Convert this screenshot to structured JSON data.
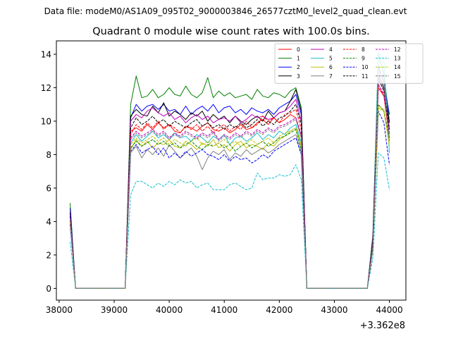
{
  "header": {
    "data_file": "Data file: modeM0/AS1A09_095T02_9000003846_26577cztM0_level2_quad_clean.evt"
  },
  "chart_data": {
    "type": "line",
    "title": "Quadrant 0 module wise count rates with 100.0s bins.",
    "xlabel": "",
    "ylabel": "",
    "x_offset_label": "+3.362e8",
    "xlim": [
      37950,
      44300
    ],
    "ylim": [
      -0.7,
      14.8
    ],
    "x_ticks": [
      38000,
      39000,
      40000,
      41000,
      42000,
      43000,
      44000
    ],
    "y_ticks": [
      0,
      2,
      4,
      6,
      8,
      10,
      12,
      14
    ],
    "grid": false,
    "legend": {
      "placement": "top-right",
      "columns": 4
    },
    "x": [
      38200,
      38300,
      38400,
      38500,
      38600,
      38700,
      38800,
      38900,
      39000,
      39100,
      39200,
      39300,
      39400,
      39500,
      39600,
      39700,
      39800,
      39900,
      40000,
      40100,
      40200,
      40300,
      40400,
      40500,
      40600,
      40700,
      40800,
      40900,
      41000,
      41100,
      41200,
      41300,
      41400,
      41500,
      41600,
      41700,
      41800,
      41900,
      42000,
      42100,
      42200,
      42300,
      42400,
      42500,
      42600,
      42700,
      42800,
      42900,
      43000,
      43100,
      43200,
      43300,
      43400,
      43500,
      43600,
      43700,
      43800,
      43900,
      44000
    ],
    "series": [
      {
        "name": "0",
        "color": "#ff0000",
        "dash": "solid",
        "values": [
          4.6,
          0,
          0,
          0,
          0,
          0,
          0,
          0,
          0,
          0,
          0,
          9.4,
          9.6,
          9.4,
          9.8,
          9.5,
          9.9,
          9.6,
          9.8,
          9.4,
          9.3,
          9.7,
          9.6,
          9.4,
          9.7,
          9.9,
          9.5,
          9.4,
          9.6,
          9.3,
          9.5,
          9.8,
          9.5,
          9.6,
          9.9,
          10.1,
          9.8,
          10.2,
          9.9,
          10.1,
          10.4,
          10.2,
          9.0,
          0,
          0,
          0,
          0,
          0,
          0,
          0,
          0,
          0,
          0,
          0,
          0,
          2.5,
          12.0,
          11.5,
          9.0
        ]
      },
      {
        "name": "1",
        "color": "#008000",
        "dash": "solid",
        "values": [
          5.1,
          0,
          0,
          0,
          0,
          0,
          0,
          0,
          0,
          0,
          0,
          11.0,
          12.7,
          11.4,
          11.5,
          11.9,
          11.4,
          11.6,
          12.0,
          11.6,
          11.5,
          12.1,
          11.6,
          11.4,
          11.7,
          12.6,
          11.4,
          11.8,
          11.5,
          11.7,
          11.4,
          11.5,
          11.6,
          11.3,
          11.9,
          11.5,
          11.4,
          11.7,
          11.6,
          11.4,
          11.8,
          12.0,
          10.8,
          0,
          0,
          0,
          0,
          0,
          0,
          0,
          0,
          0,
          0,
          0,
          0,
          3.2,
          14.0,
          12.8,
          10.0
        ]
      },
      {
        "name": "2",
        "color": "#0000ff",
        "dash": "solid",
        "values": [
          4.8,
          0,
          0,
          0,
          0,
          0,
          0,
          0,
          0,
          0,
          0,
          10.2,
          11.0,
          10.6,
          10.9,
          11.0,
          10.7,
          11.0,
          10.6,
          10.7,
          10.4,
          10.9,
          10.4,
          10.7,
          10.9,
          10.6,
          11.0,
          10.5,
          10.8,
          10.9,
          10.5,
          10.7,
          10.4,
          10.8,
          10.6,
          10.5,
          10.7,
          10.4,
          10.8,
          11.0,
          11.2,
          11.6,
          10.4,
          0,
          0,
          0,
          0,
          0,
          0,
          0,
          0,
          0,
          0,
          0,
          0,
          3.0,
          13.3,
          12.3,
          10.4
        ]
      },
      {
        "name": "3",
        "color": "#000000",
        "dash": "solid",
        "values": [
          4.5,
          0,
          0,
          0,
          0,
          0,
          0,
          0,
          0,
          0,
          0,
          10.3,
          10.7,
          10.4,
          10.3,
          10.9,
          10.5,
          11.1,
          10.3,
          10.6,
          10.4,
          10.1,
          10.5,
          10.3,
          10.6,
          10.0,
          10.4,
          10.1,
          10.3,
          9.9,
          10.3,
          10.0,
          9.8,
          10.1,
          10.3,
          10.0,
          10.6,
          10.2,
          10.5,
          10.6,
          11.2,
          11.9,
          10.6,
          0,
          0,
          0,
          0,
          0,
          0,
          0,
          0,
          0,
          0,
          0,
          0,
          2.9,
          12.8,
          12.0,
          9.9
        ]
      },
      {
        "name": "4",
        "color": "#bf00bf",
        "dash": "solid",
        "values": [
          4.4,
          0,
          0,
          0,
          0,
          0,
          0,
          0,
          0,
          0,
          0,
          10.0,
          10.4,
          10.2,
          10.6,
          10.8,
          10.5,
          10.3,
          10.5,
          10.1,
          10.3,
          9.9,
          10.2,
          10.4,
          10.1,
          10.3,
          9.9,
          10.1,
          10.2,
          10.0,
          10.3,
          9.9,
          10.1,
          10.4,
          10.2,
          10.3,
          10.1,
          10.2,
          10.5,
          10.6,
          10.9,
          11.3,
          10.0,
          0,
          0,
          0,
          0,
          0,
          0,
          0,
          0,
          0,
          0,
          0,
          0,
          2.8,
          12.6,
          11.8,
          9.6
        ]
      },
      {
        "name": "5",
        "color": "#17becf",
        "dash": "solid",
        "values": [
          4.0,
          0,
          0,
          0,
          0,
          0,
          0,
          0,
          0,
          0,
          0,
          8.7,
          9.2,
          8.8,
          9.1,
          9.4,
          9.0,
          9.2,
          8.9,
          9.3,
          9.0,
          9.1,
          8.8,
          9.2,
          9.0,
          8.7,
          9.1,
          8.9,
          9.2,
          8.6,
          9.0,
          9.1,
          8.8,
          9.0,
          9.3,
          8.9,
          9.2,
          9.0,
          9.4,
          9.2,
          9.6,
          9.8,
          8.7,
          0,
          0,
          0,
          0,
          0,
          0,
          0,
          0,
          0,
          0,
          0,
          0,
          2.4,
          14.1,
          13.6,
          8.1
        ]
      },
      {
        "name": "6",
        "color": "#bfbf00",
        "dash": "solid",
        "values": [
          4.1,
          0,
          0,
          0,
          0,
          0,
          0,
          0,
          0,
          0,
          0,
          8.3,
          8.9,
          8.5,
          8.8,
          8.4,
          8.7,
          8.6,
          8.9,
          8.5,
          8.4,
          8.8,
          8.6,
          8.3,
          8.7,
          8.5,
          8.9,
          8.4,
          8.6,
          8.2,
          8.6,
          8.8,
          8.4,
          8.6,
          8.5,
          8.3,
          8.7,
          8.5,
          8.9,
          9.1,
          9.4,
          9.6,
          8.4,
          0,
          0,
          0,
          0,
          0,
          0,
          0,
          0,
          0,
          0,
          0,
          0,
          2.3,
          10.8,
          10.6,
          8.5
        ]
      },
      {
        "name": "7",
        "color": "#808080",
        "dash": "solid",
        "values": [
          3.9,
          0,
          0,
          0,
          0,
          0,
          0,
          0,
          0,
          0,
          0,
          8.1,
          8.5,
          7.8,
          8.3,
          8.0,
          8.4,
          7.9,
          8.6,
          8.2,
          7.8,
          8.1,
          8.4,
          7.9,
          7.1,
          7.8,
          8.2,
          8.0,
          8.3,
          7.7,
          8.1,
          7.9,
          8.3,
          8.0,
          8.2,
          8.4,
          8.1,
          8.3,
          8.6,
          8.8,
          9.0,
          9.2,
          8.1,
          0,
          0,
          0,
          0,
          0,
          0,
          0,
          0,
          0,
          0,
          0,
          0,
          2.6,
          13.0,
          12.6,
          8.8
        ]
      },
      {
        "name": "8",
        "color": "#ff0000",
        "dash": "dashed",
        "values": [
          4.2,
          0,
          0,
          0,
          0,
          0,
          0,
          0,
          0,
          0,
          0,
          9.2,
          9.8,
          9.5,
          9.9,
          9.6,
          10.0,
          9.5,
          9.8,
          9.6,
          9.3,
          9.7,
          9.5,
          9.8,
          9.4,
          9.7,
          9.3,
          9.6,
          9.8,
          9.4,
          9.7,
          9.5,
          10.0,
          9.6,
          9.8,
          10.3,
          10.0,
          10.2,
          9.9,
          10.4,
          10.5,
          10.7,
          9.5,
          0,
          0,
          0,
          0,
          0,
          0,
          0,
          0,
          0,
          0,
          0,
          0,
          2.7,
          12.2,
          11.5,
          9.3
        ]
      },
      {
        "name": "9",
        "color": "#008000",
        "dash": "dashed",
        "values": [
          4.0,
          0,
          0,
          0,
          0,
          0,
          0,
          0,
          0,
          0,
          0,
          8.4,
          8.8,
          8.5,
          8.7,
          8.9,
          8.6,
          8.8,
          8.5,
          8.7,
          8.4,
          8.6,
          8.8,
          8.5,
          8.3,
          8.6,
          8.5,
          8.7,
          8.4,
          8.6,
          8.2,
          8.5,
          8.7,
          8.4,
          8.6,
          8.8,
          8.5,
          8.7,
          9.0,
          9.1,
          9.3,
          9.5,
          8.3,
          0,
          0,
          0,
          0,
          0,
          0,
          0,
          0,
          0,
          0,
          0,
          0,
          2.5,
          11.0,
          10.6,
          9.0
        ]
      },
      {
        "name": "10",
        "color": "#0000ff",
        "dash": "dashed",
        "values": [
          3.8,
          0,
          0,
          0,
          0,
          0,
          0,
          0,
          0,
          0,
          0,
          8.2,
          8.6,
          8.1,
          8.3,
          8.5,
          8.0,
          8.4,
          7.8,
          8.1,
          7.8,
          8.2,
          7.9,
          8.1,
          8.3,
          8.0,
          7.9,
          7.7,
          8.0,
          7.6,
          7.9,
          7.7,
          7.8,
          7.5,
          7.7,
          8.0,
          7.8,
          8.2,
          8.4,
          8.6,
          8.8,
          9.0,
          8.0,
          0,
          0,
          0,
          0,
          0,
          0,
          0,
          0,
          0,
          0,
          0,
          0,
          2.4,
          10.6,
          9.9,
          7.4
        ]
      },
      {
        "name": "11",
        "color": "#000000",
        "dash": "dashed",
        "values": [
          4.3,
          0,
          0,
          0,
          0,
          0,
          0,
          0,
          0,
          0,
          0,
          9.6,
          10.2,
          9.8,
          10.0,
          10.3,
          9.9,
          10.1,
          9.7,
          10.0,
          9.8,
          9.6,
          9.9,
          10.1,
          9.7,
          9.9,
          9.6,
          9.8,
          9.5,
          9.8,
          9.6,
          9.9,
          9.6,
          9.8,
          10.1,
          9.7,
          10.0,
          9.8,
          10.2,
          10.3,
          10.6,
          11.0,
          9.8,
          0,
          0,
          0,
          0,
          0,
          0,
          0,
          0,
          0,
          0,
          0,
          0,
          2.8,
          12.5,
          11.8,
          9.5
        ]
      },
      {
        "name": "12",
        "color": "#bf00bf",
        "dash": "dashed",
        "values": [
          4.1,
          0,
          0,
          0,
          0,
          0,
          0,
          0,
          0,
          0,
          0,
          9.0,
          9.4,
          9.1,
          9.3,
          9.5,
          9.2,
          9.4,
          9.0,
          9.3,
          9.1,
          9.4,
          9.2,
          9.0,
          9.3,
          9.1,
          9.4,
          8.9,
          9.2,
          9.0,
          9.3,
          9.1,
          9.4,
          9.2,
          9.5,
          9.3,
          9.6,
          9.4,
          9.7,
          9.8,
          10.0,
          10.2,
          9.2,
          0,
          0,
          0,
          0,
          0,
          0,
          0,
          0,
          0,
          0,
          0,
          0,
          2.6,
          12.2,
          11.6,
          9.2
        ]
      },
      {
        "name": "13",
        "color": "#17becf",
        "dash": "dashed",
        "values": [
          2.8,
          0,
          0,
          0,
          0,
          0,
          0,
          0,
          0,
          0,
          0,
          5.6,
          6.4,
          6.4,
          6.2,
          6.0,
          6.3,
          6.1,
          6.4,
          6.2,
          6.5,
          6.3,
          6.4,
          6.0,
          6.2,
          6.3,
          5.9,
          5.9,
          5.9,
          6.2,
          6.3,
          6.1,
          5.9,
          6.0,
          6.9,
          6.5,
          6.6,
          6.6,
          6.8,
          6.7,
          6.8,
          7.4,
          6.5,
          0,
          0,
          0,
          0,
          0,
          0,
          0,
          0,
          0,
          0,
          0,
          0,
          1.8,
          8.1,
          7.8,
          5.9
        ]
      },
      {
        "name": "14",
        "color": "#bfbf00",
        "dash": "dashed",
        "values": [
          4.0,
          0,
          0,
          0,
          0,
          0,
          0,
          0,
          0,
          0,
          0,
          8.6,
          9.0,
          8.7,
          8.9,
          9.1,
          8.8,
          9.0,
          8.6,
          8.9,
          8.7,
          8.5,
          8.8,
          9.0,
          8.6,
          8.8,
          8.5,
          8.7,
          8.9,
          8.6,
          8.8,
          8.5,
          8.7,
          8.9,
          8.6,
          8.8,
          9.0,
          8.7,
          9.1,
          9.3,
          9.4,
          9.6,
          8.6,
          0,
          0,
          0,
          0,
          0,
          0,
          0,
          0,
          0,
          0,
          0,
          0,
          2.5,
          10.9,
          10.7,
          8.6
        ]
      },
      {
        "name": "15",
        "color": "#808080",
        "dash": "dashed",
        "values": [
          4.2,
          0,
          0,
          0,
          0,
          0,
          0,
          0,
          0,
          0,
          0,
          8.9,
          9.3,
          9.0,
          9.2,
          9.4,
          9.1,
          9.3,
          8.9,
          9.2,
          9.0,
          9.3,
          9.1,
          8.9,
          9.2,
          9.0,
          9.3,
          8.8,
          9.1,
          8.9,
          9.2,
          9.0,
          9.3,
          9.1,
          9.4,
          9.2,
          9.5,
          9.3,
          9.6,
          9.7,
          9.9,
          10.1,
          9.0,
          0,
          0,
          0,
          0,
          0,
          0,
          0,
          0,
          0,
          0,
          0,
          0,
          2.6,
          12.4,
          11.9,
          9.0
        ]
      }
    ]
  }
}
